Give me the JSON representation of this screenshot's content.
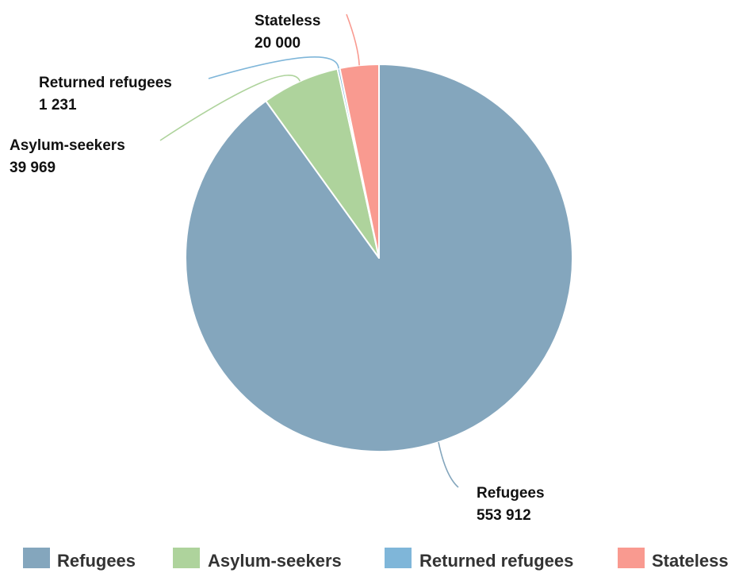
{
  "chart_data": {
    "type": "pie",
    "title": "",
    "categories": [
      "Refugees",
      "Asylum-seekers",
      "Returned refugees",
      "Stateless"
    ],
    "values": [
      553912,
      39969,
      1231,
      20000
    ],
    "value_labels": [
      "553 912",
      "39 969",
      "1 231",
      "20 000"
    ],
    "colors": [
      "#84a6bd",
      "#aed39c",
      "#7fb6d9",
      "#f99a90"
    ],
    "legend_position": "bottom",
    "start_angle_deg": 0,
    "direction": "clockwise"
  }
}
